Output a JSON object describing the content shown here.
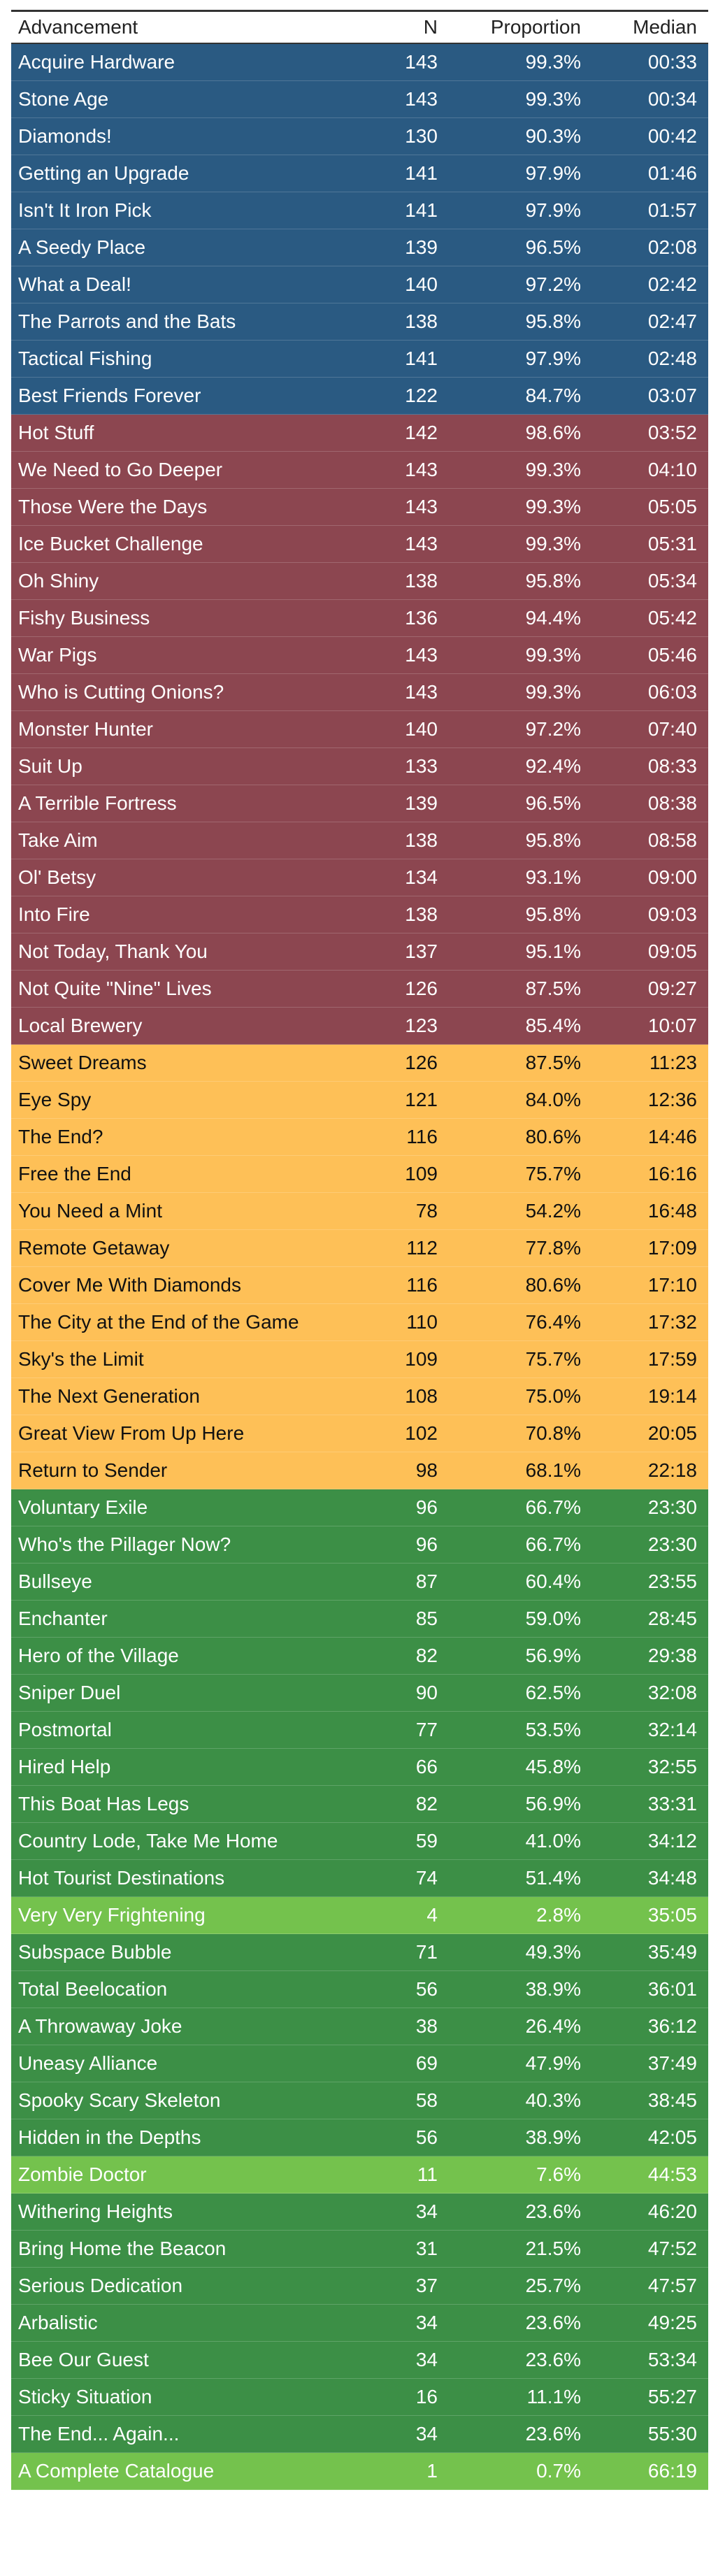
{
  "header": {
    "advancement": "Advancement",
    "n": "N",
    "proportion": "Proportion",
    "median": "Median"
  },
  "colors": {
    "blue": "#2a5a82",
    "red": "#8c4650",
    "yellow": "#fec057",
    "green": "#3c8f46",
    "lime": "#74c24d"
  },
  "rows": [
    {
      "name": "Acquire Hardware",
      "n": "143",
      "proportion": "99.3%",
      "median": "00:33",
      "group": "blue"
    },
    {
      "name": "Stone Age",
      "n": "143",
      "proportion": "99.3%",
      "median": "00:34",
      "group": "blue"
    },
    {
      "name": "Diamonds!",
      "n": "130",
      "proportion": "90.3%",
      "median": "00:42",
      "group": "blue"
    },
    {
      "name": "Getting an Upgrade",
      "n": "141",
      "proportion": "97.9%",
      "median": "01:46",
      "group": "blue"
    },
    {
      "name": "Isn't It Iron Pick",
      "n": "141",
      "proportion": "97.9%",
      "median": "01:57",
      "group": "blue"
    },
    {
      "name": "A Seedy Place",
      "n": "139",
      "proportion": "96.5%",
      "median": "02:08",
      "group": "blue"
    },
    {
      "name": "What a Deal!",
      "n": "140",
      "proportion": "97.2%",
      "median": "02:42",
      "group": "blue"
    },
    {
      "name": "The Parrots and the Bats",
      "n": "138",
      "proportion": "95.8%",
      "median": "02:47",
      "group": "blue"
    },
    {
      "name": "Tactical Fishing",
      "n": "141",
      "proportion": "97.9%",
      "median": "02:48",
      "group": "blue"
    },
    {
      "name": "Best Friends Forever",
      "n": "122",
      "proportion": "84.7%",
      "median": "03:07",
      "group": "blue"
    },
    {
      "name": "Hot Stuff",
      "n": "142",
      "proportion": "98.6%",
      "median": "03:52",
      "group": "red"
    },
    {
      "name": "We Need to Go Deeper",
      "n": "143",
      "proportion": "99.3%",
      "median": "04:10",
      "group": "red"
    },
    {
      "name": "Those Were the Days",
      "n": "143",
      "proportion": "99.3%",
      "median": "05:05",
      "group": "red"
    },
    {
      "name": "Ice Bucket Challenge",
      "n": "143",
      "proportion": "99.3%",
      "median": "05:31",
      "group": "red"
    },
    {
      "name": "Oh Shiny",
      "n": "138",
      "proportion": "95.8%",
      "median": "05:34",
      "group": "red"
    },
    {
      "name": "Fishy Business",
      "n": "136",
      "proportion": "94.4%",
      "median": "05:42",
      "group": "red"
    },
    {
      "name": "War Pigs",
      "n": "143",
      "proportion": "99.3%",
      "median": "05:46",
      "group": "red"
    },
    {
      "name": "Who is Cutting Onions?",
      "n": "143",
      "proportion": "99.3%",
      "median": "06:03",
      "group": "red"
    },
    {
      "name": "Monster Hunter",
      "n": "140",
      "proportion": "97.2%",
      "median": "07:40",
      "group": "red"
    },
    {
      "name": "Suit Up",
      "n": "133",
      "proportion": "92.4%",
      "median": "08:33",
      "group": "red"
    },
    {
      "name": "A Terrible Fortress",
      "n": "139",
      "proportion": "96.5%",
      "median": "08:38",
      "group": "red"
    },
    {
      "name": "Take Aim",
      "n": "138",
      "proportion": "95.8%",
      "median": "08:58",
      "group": "red"
    },
    {
      "name": "Ol' Betsy",
      "n": "134",
      "proportion": "93.1%",
      "median": "09:00",
      "group": "red"
    },
    {
      "name": "Into Fire",
      "n": "138",
      "proportion": "95.8%",
      "median": "09:03",
      "group": "red"
    },
    {
      "name": "Not Today, Thank You",
      "n": "137",
      "proportion": "95.1%",
      "median": "09:05",
      "group": "red"
    },
    {
      "name": "Not Quite \"Nine\" Lives",
      "n": "126",
      "proportion": "87.5%",
      "median": "09:27",
      "group": "red"
    },
    {
      "name": "Local Brewery",
      "n": "123",
      "proportion": "85.4%",
      "median": "10:07",
      "group": "red"
    },
    {
      "name": "Sweet Dreams",
      "n": "126",
      "proportion": "87.5%",
      "median": "11:23",
      "group": "yellow"
    },
    {
      "name": "Eye Spy",
      "n": "121",
      "proportion": "84.0%",
      "median": "12:36",
      "group": "yellow"
    },
    {
      "name": "The End?",
      "n": "116",
      "proportion": "80.6%",
      "median": "14:46",
      "group": "yellow"
    },
    {
      "name": "Free the End",
      "n": "109",
      "proportion": "75.7%",
      "median": "16:16",
      "group": "yellow"
    },
    {
      "name": "You Need a Mint",
      "n": "78",
      "proportion": "54.2%",
      "median": "16:48",
      "group": "yellow"
    },
    {
      "name": "Remote Getaway",
      "n": "112",
      "proportion": "77.8%",
      "median": "17:09",
      "group": "yellow"
    },
    {
      "name": "Cover Me With Diamonds",
      "n": "116",
      "proportion": "80.6%",
      "median": "17:10",
      "group": "yellow"
    },
    {
      "name": "The City at the End of the Game",
      "n": "110",
      "proportion": "76.4%",
      "median": "17:32",
      "group": "yellow",
      "wrap": true
    },
    {
      "name": "Sky's the Limit",
      "n": "109",
      "proportion": "75.7%",
      "median": "17:59",
      "group": "yellow"
    },
    {
      "name": "The Next Generation",
      "n": "108",
      "proportion": "75.0%",
      "median": "19:14",
      "group": "yellow"
    },
    {
      "name": "Great View From Up Here",
      "n": "102",
      "proportion": "70.8%",
      "median": "20:05",
      "group": "yellow"
    },
    {
      "name": "Return to Sender",
      "n": "98",
      "proportion": "68.1%",
      "median": "22:18",
      "group": "yellow"
    },
    {
      "name": "Voluntary Exile",
      "n": "96",
      "proportion": "66.7%",
      "median": "23:30",
      "group": "green"
    },
    {
      "name": "Who's the Pillager Now?",
      "n": "96",
      "proportion": "66.7%",
      "median": "23:30",
      "group": "green"
    },
    {
      "name": "Bullseye",
      "n": "87",
      "proportion": "60.4%",
      "median": "23:55",
      "group": "green"
    },
    {
      "name": "Enchanter",
      "n": "85",
      "proportion": "59.0%",
      "median": "28:45",
      "group": "green"
    },
    {
      "name": "Hero of the Village",
      "n": "82",
      "proportion": "56.9%",
      "median": "29:38",
      "group": "green"
    },
    {
      "name": "Sniper Duel",
      "n": "90",
      "proportion": "62.5%",
      "median": "32:08",
      "group": "green"
    },
    {
      "name": "Postmortal",
      "n": "77",
      "proportion": "53.5%",
      "median": "32:14",
      "group": "green"
    },
    {
      "name": "Hired Help",
      "n": "66",
      "proportion": "45.8%",
      "median": "32:55",
      "group": "green"
    },
    {
      "name": "This Boat Has Legs",
      "n": "82",
      "proportion": "56.9%",
      "median": "33:31",
      "group": "green"
    },
    {
      "name": "Country Lode, Take Me Home",
      "n": "59",
      "proportion": "41.0%",
      "median": "34:12",
      "group": "green",
      "wrap": true
    },
    {
      "name": "Hot Tourist Destinations",
      "n": "74",
      "proportion": "51.4%",
      "median": "34:48",
      "group": "green"
    },
    {
      "name": "Very Very Frightening",
      "n": "4",
      "proportion": "2.8%",
      "median": "35:05",
      "group": "lime"
    },
    {
      "name": "Subspace Bubble",
      "n": "71",
      "proportion": "49.3%",
      "median": "35:49",
      "group": "green"
    },
    {
      "name": "Total Beelocation",
      "n": "56",
      "proportion": "38.9%",
      "median": "36:01",
      "group": "green"
    },
    {
      "name": "A Throwaway Joke",
      "n": "38",
      "proportion": "26.4%",
      "median": "36:12",
      "group": "green"
    },
    {
      "name": "Uneasy Alliance",
      "n": "69",
      "proportion": "47.9%",
      "median": "37:49",
      "group": "green"
    },
    {
      "name": "Spooky Scary Skeleton",
      "n": "58",
      "proportion": "40.3%",
      "median": "38:45",
      "group": "green"
    },
    {
      "name": "Hidden in the Depths",
      "n": "56",
      "proportion": "38.9%",
      "median": "42:05",
      "group": "green"
    },
    {
      "name": "Zombie Doctor",
      "n": "11",
      "proportion": "7.6%",
      "median": "44:53",
      "group": "lime"
    },
    {
      "name": "Withering Heights",
      "n": "34",
      "proportion": "23.6%",
      "median": "46:20",
      "group": "green"
    },
    {
      "name": "Bring Home the Beacon",
      "n": "31",
      "proportion": "21.5%",
      "median": "47:52",
      "group": "green"
    },
    {
      "name": "Serious Dedication",
      "n": "37",
      "proportion": "25.7%",
      "median": "47:57",
      "group": "green"
    },
    {
      "name": "Arbalistic",
      "n": "34",
      "proportion": "23.6%",
      "median": "49:25",
      "group": "green"
    },
    {
      "name": "Bee Our Guest",
      "n": "34",
      "proportion": "23.6%",
      "median": "53:34",
      "group": "green"
    },
    {
      "name": "Sticky Situation",
      "n": "16",
      "proportion": "11.1%",
      "median": "55:27",
      "group": "green"
    },
    {
      "name": "The End... Again...",
      "n": "34",
      "proportion": "23.6%",
      "median": "55:30",
      "group": "green"
    },
    {
      "name": "A Complete Catalogue",
      "n": "1",
      "proportion": "0.7%",
      "median": "66:19",
      "group": "lime"
    }
  ]
}
